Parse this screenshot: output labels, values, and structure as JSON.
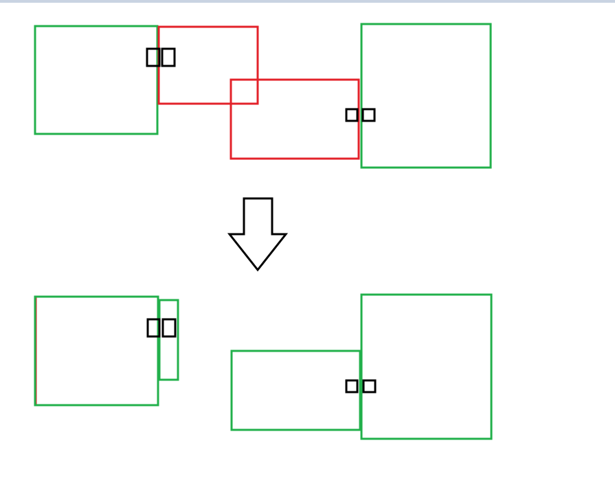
{
  "colors": {
    "background": "#ffffff",
    "top_strip": "#c9d3e2",
    "green": "#22b04b",
    "red": "#e3222a",
    "black": "#000000"
  },
  "diagram": {
    "sections": [
      {
        "name": "before",
        "elements": [
          "green-square-left",
          "red-rect-upper",
          "red-rect-lower",
          "green-square-right",
          "small-box-pair-1",
          "small-box-pair-2"
        ]
      },
      {
        "name": "after",
        "elements": [
          "green-red-square-left",
          "green-narrow-rect",
          "green-rect-lower",
          "green-square-right",
          "small-box-pair-3",
          "small-box-pair-4"
        ]
      }
    ],
    "connector": "down-arrow-icon"
  }
}
